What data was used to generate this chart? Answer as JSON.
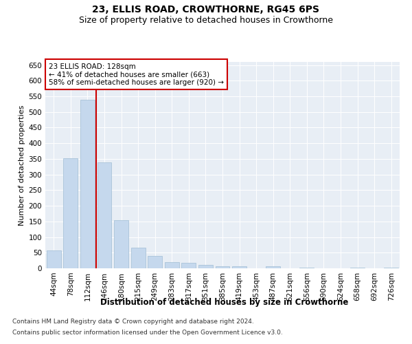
{
  "title": "23, ELLIS ROAD, CROWTHORNE, RG45 6PS",
  "subtitle": "Size of property relative to detached houses in Crowthorne",
  "xlabel": "Distribution of detached houses by size in Crowthorne",
  "ylabel": "Number of detached properties",
  "categories": [
    "44sqm",
    "78sqm",
    "112sqm",
    "146sqm",
    "180sqm",
    "215sqm",
    "249sqm",
    "283sqm",
    "317sqm",
    "351sqm",
    "385sqm",
    "419sqm",
    "453sqm",
    "487sqm",
    "521sqm",
    "556sqm",
    "590sqm",
    "624sqm",
    "658sqm",
    "692sqm",
    "726sqm"
  ],
  "bar_heights": [
    57,
    353,
    540,
    338,
    155,
    65,
    40,
    20,
    18,
    10,
    6,
    7,
    0,
    7,
    0,
    3,
    0,
    0,
    3,
    0,
    3
  ],
  "bar_color": "#c5d8ed",
  "bar_edgecolor": "#a0bdd4",
  "vline_x_index": 2,
  "vline_color": "#cc0000",
  "annotation_text": "23 ELLIS ROAD: 128sqm\n← 41% of detached houses are smaller (663)\n58% of semi-detached houses are larger (920) →",
  "annotation_box_edgecolor": "#cc0000",
  "annotation_box_facecolor": "#ffffff",
  "ylim": [
    0,
    660
  ],
  "yticks": [
    0,
    50,
    100,
    150,
    200,
    250,
    300,
    350,
    400,
    450,
    500,
    550,
    600,
    650
  ],
  "background_color": "#e8eef5",
  "footer_line1": "Contains HM Land Registry data © Crown copyright and database right 2024.",
  "footer_line2": "Contains public sector information licensed under the Open Government Licence v3.0.",
  "title_fontsize": 10,
  "subtitle_fontsize": 9,
  "xlabel_fontsize": 8.5,
  "ylabel_fontsize": 8,
  "tick_fontsize": 7.5,
  "annotation_fontsize": 7.5,
  "footer_fontsize": 6.5
}
